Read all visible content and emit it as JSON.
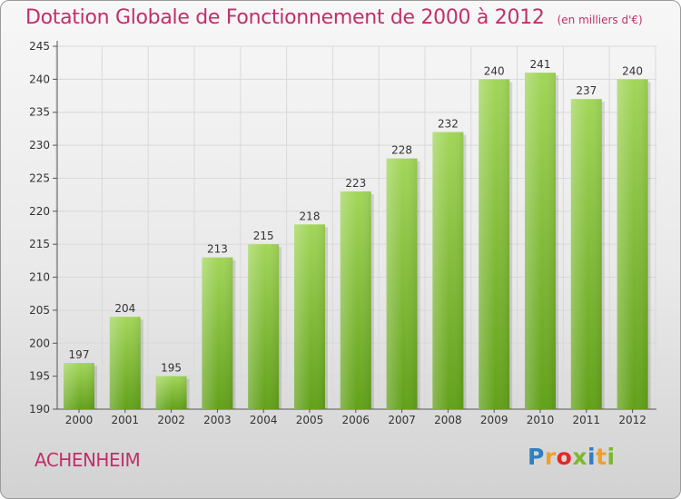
{
  "title": "Dotation Globale de Fonctionnement de 2000 à 2012",
  "unit_note": "(en milliers d'€)",
  "commune": "ACHENHEIM",
  "logo": {
    "letters": [
      "P",
      "r",
      "o",
      "x",
      "i",
      "t",
      "i"
    ],
    "colors": [
      "#2f7fc1",
      "#f0a02a",
      "#e6262a",
      "#7cb82f",
      "#2f7fc1",
      "#f0a02a",
      "#7cb82f"
    ]
  },
  "colors": {
    "title": "#c0306a",
    "bar_light": "#a2d65a",
    "bar_dark": "#62a11a",
    "grid": "#d9d9d9"
  },
  "chart_data": {
    "type": "bar",
    "categories": [
      "2000",
      "2001",
      "2002",
      "2003",
      "2004",
      "2005",
      "2006",
      "2007",
      "2008",
      "2009",
      "2010",
      "2011",
      "2012"
    ],
    "values": [
      197,
      204,
      195,
      213,
      215,
      218,
      223,
      228,
      232,
      240,
      241,
      237,
      240
    ],
    "ylim": [
      190,
      245
    ],
    "yticks": [
      190,
      195,
      200,
      205,
      210,
      215,
      220,
      225,
      230,
      235,
      240,
      245
    ],
    "data_labels": true,
    "grid": true,
    "xlabel": "",
    "ylabel": ""
  }
}
